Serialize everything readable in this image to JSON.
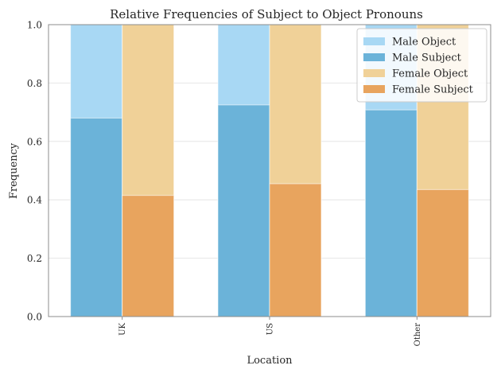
{
  "chart_data": {
    "type": "bar",
    "title": "Relative Frequencies of Subject to Object Pronouns",
    "xlabel": "Location",
    "ylabel": "Frequency",
    "categories": [
      "UK",
      "US",
      "Other"
    ],
    "ylim": [
      0,
      1
    ],
    "yticks": [
      "0.0",
      "0.2",
      "0.4",
      "0.6",
      "0.8",
      "1.0"
    ],
    "grid": true,
    "legend_position": "top-right",
    "series": [
      {
        "name": "Male Object",
        "group": "Male",
        "values": [
          1.0,
          1.0,
          1.0
        ],
        "color": "#a8d8f4"
      },
      {
        "name": "Male Subject",
        "group": "Male",
        "values": [
          0.68,
          0.725,
          0.708
        ],
        "color": "#6bb3d9"
      },
      {
        "name": "Female Object",
        "group": "Female",
        "values": [
          1.0,
          1.0,
          1.0
        ],
        "color": "#f0d198"
      },
      {
        "name": "Female Subject",
        "group": "Female",
        "values": [
          0.415,
          0.455,
          0.435
        ],
        "color": "#e8a45e"
      }
    ]
  }
}
